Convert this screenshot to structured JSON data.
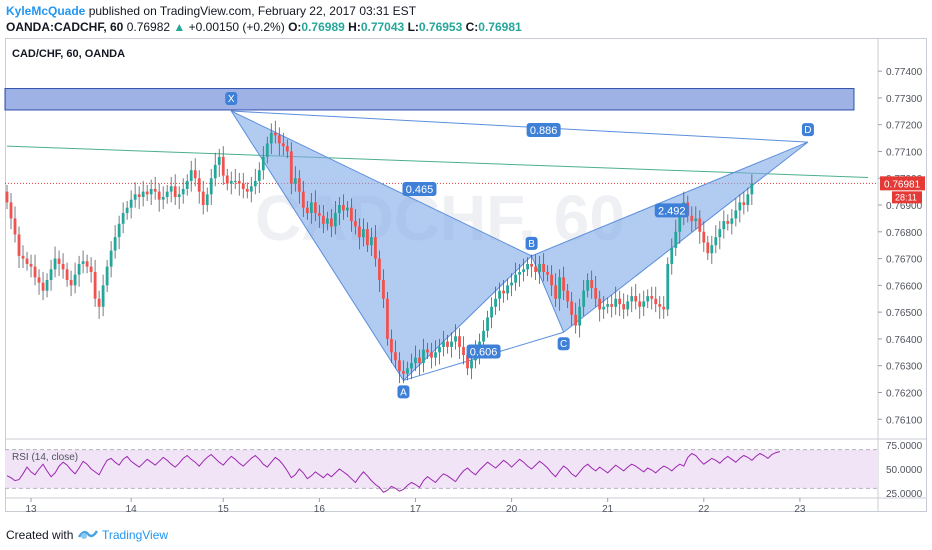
{
  "header": {
    "author": "KyleMcQuade",
    "published_text": "published on TradingView.com, February 22, 2017 03:31 EST",
    "symbol": "OANDA:CADCHF, 60",
    "last": "0.76982",
    "change": "+0.00150 (+0.2%)",
    "o_label": "O:",
    "o_value": "0.76989",
    "h_label": "H:",
    "h_value": "0.77043",
    "l_label": "L:",
    "l_value": "0.76953",
    "c_label": "C:",
    "c_value": "0.76981"
  },
  "footer": {
    "created_with": "Created with",
    "brand": "TradingView"
  },
  "colors": {
    "up": "#26a69a",
    "down": "#ef5350",
    "pattern_fill": "#7ea8e8",
    "pattern_edge": "#5b8fdc",
    "zone": "#4f73d0",
    "trendline": "#4caf8c",
    "price_line": "#e53935",
    "rsi": "#9c27b0",
    "rsi_band": "#f1e4f7"
  },
  "chart_data": {
    "type": "candlestick",
    "title": "CAD/CHF, 60, OANDA",
    "ylim": [
      0.7603,
      0.7752
    ],
    "y_ticks": [
      "0.77400",
      "0.77300",
      "0.77200",
      "0.77100",
      "0.77000",
      "0.76900",
      "0.76800",
      "0.76700",
      "0.76600",
      "0.76500",
      "0.76400",
      "0.76300",
      "0.76200",
      "0.76100"
    ],
    "y_tick_values": [
      0.774,
      0.773,
      0.772,
      0.771,
      0.77,
      0.769,
      0.768,
      0.767,
      0.766,
      0.765,
      0.764,
      0.763,
      0.762,
      0.761
    ],
    "x_labels": [
      "13",
      "14",
      "15",
      "16",
      "17",
      "20",
      "21",
      "22",
      "23"
    ],
    "x_label_index": [
      6,
      31,
      54,
      78,
      102,
      126,
      150,
      174,
      198
    ],
    "x_count": 218,
    "last_price": {
      "value": 0.76981,
      "label": "0.76981",
      "countdown": "28:11"
    },
    "candles_close": [
      0.7691,
      0.7685,
      0.7679,
      0.7671,
      0.767,
      0.7668,
      0.7667,
      0.7663,
      0.7661,
      0.7658,
      0.7662,
      0.7666,
      0.767,
      0.7668,
      0.7666,
      0.7662,
      0.766,
      0.7664,
      0.7668,
      0.7669,
      0.7667,
      0.7665,
      0.7655,
      0.7652,
      0.766,
      0.7667,
      0.7673,
      0.7678,
      0.7683,
      0.7687,
      0.7689,
      0.7692,
      0.7694,
      0.7693,
      0.7695,
      0.7694,
      0.7696,
      0.7695,
      0.7692,
      0.7693,
      0.7695,
      0.7697,
      0.7693,
      0.7694,
      0.7696,
      0.7699,
      0.7703,
      0.77,
      0.7695,
      0.769,
      0.7694,
      0.77,
      0.7705,
      0.7708,
      0.7701,
      0.7698,
      0.7699,
      0.7699,
      0.7698,
      0.7696,
      0.7695,
      0.7697,
      0.7699,
      0.7703,
      0.7708,
      0.7713,
      0.7717,
      0.7716,
      0.7713,
      0.7712,
      0.771,
      0.7698,
      0.77,
      0.7695,
      0.7689,
      0.7687,
      0.7691,
      0.7687,
      0.7686,
      0.7683,
      0.7685,
      0.7682,
      0.7687,
      0.769,
      0.7688,
      0.7689,
      0.7684,
      0.7682,
      0.7678,
      0.7681,
      0.7675,
      0.7678,
      0.767,
      0.7662,
      0.7655,
      0.764,
      0.7635,
      0.7632,
      0.7628,
      0.7627,
      0.7629,
      0.7631,
      0.7633,
      0.7631,
      0.7636,
      0.7635,
      0.7633,
      0.7635,
      0.7637,
      0.7639,
      0.7637,
      0.7639,
      0.7641,
      0.7637,
      0.7634,
      0.7629,
      0.7632,
      0.7635,
      0.7639,
      0.7643,
      0.7648,
      0.7652,
      0.7655,
      0.7658,
      0.7657,
      0.766,
      0.7661,
      0.7664,
      0.7665,
      0.7666,
      0.7668,
      0.7667,
      0.7665,
      0.7668,
      0.7665,
      0.7664,
      0.766,
      0.7655,
      0.7663,
      0.7658,
      0.7654,
      0.7649,
      0.7645,
      0.7652,
      0.7658,
      0.7662,
      0.7659,
      0.7655,
      0.7651,
      0.7652,
      0.7653,
      0.7652,
      0.7655,
      0.7653,
      0.7651,
      0.7654,
      0.7656,
      0.7654,
      0.7652,
      0.7654,
      0.7656,
      0.7655,
      0.7653,
      0.7652,
      0.7651,
      0.7668,
      0.7674,
      0.768,
      0.7686,
      0.7691,
      0.7686,
      0.7684,
      0.7685,
      0.768,
      0.7676,
      0.7672,
      0.7675,
      0.7678,
      0.7681,
      0.7684,
      0.7683,
      0.7685,
      0.7688,
      0.7691,
      0.769,
      0.7694,
      0.7698
    ],
    "rsi": {
      "label": "RSI (14, close)",
      "ylim": [
        20,
        80
      ],
      "y_ticks": [
        "75.0000",
        "50.0000",
        "25.0000"
      ],
      "y_tick_values": [
        75,
        50,
        25
      ],
      "band": [
        30,
        70
      ],
      "values": [
        43,
        41,
        38,
        39,
        45,
        52,
        47,
        44,
        50,
        55,
        48,
        42,
        46,
        53,
        57,
        54,
        49,
        45,
        51,
        58,
        55,
        50,
        47,
        44,
        52,
        59,
        61,
        57,
        54,
        60,
        63,
        58,
        55,
        52,
        56,
        60,
        57,
        54,
        58,
        62,
        59,
        55,
        52,
        56,
        61,
        64,
        60,
        57,
        53,
        58,
        62,
        65,
        61,
        57,
        54,
        59,
        63,
        60,
        56,
        53,
        57,
        61,
        64,
        60,
        55,
        52,
        57,
        62,
        59,
        54,
        48,
        41,
        44,
        50,
        46,
        40,
        43,
        47,
        44,
        41,
        45,
        42,
        46,
        50,
        47,
        44,
        40,
        36,
        42,
        47,
        43,
        38,
        34,
        31,
        26,
        28,
        32,
        30,
        27,
        29,
        33,
        36,
        34,
        31,
        38,
        42,
        39,
        36,
        41,
        45,
        43,
        40,
        37,
        43,
        48,
        51,
        47,
        44,
        49,
        53,
        57,
        54,
        51,
        55,
        59,
        56,
        52,
        56,
        60,
        57,
        53,
        50,
        54,
        58,
        55,
        51,
        46,
        42,
        48,
        53,
        50,
        45,
        42,
        47,
        52,
        55,
        51,
        48,
        52,
        49,
        46,
        50,
        54,
        51,
        48,
        52,
        55,
        53,
        50,
        47,
        51,
        49,
        46,
        50,
        53,
        51,
        48,
        52,
        55,
        53,
        62,
        66,
        64,
        59,
        55,
        58,
        61,
        59,
        56,
        60,
        63,
        60,
        57,
        61,
        64,
        62,
        59,
        63,
        66,
        64,
        61,
        65,
        67,
        68
      ]
    },
    "pattern": {
      "points": [
        {
          "label": "X",
          "index": 56,
          "price": 0.77251
        },
        {
          "label": "A",
          "index": 99,
          "price": 0.76245
        },
        {
          "label": "B",
          "index": 131,
          "price": 0.7671
        },
        {
          "label": "C",
          "index": 139,
          "price": 0.76425
        },
        {
          "label": "D",
          "index": 200,
          "price": 0.77135
        }
      ],
      "ratios": [
        {
          "label": "0.465",
          "index": 103,
          "price": 0.7696
        },
        {
          "label": "0.606",
          "index": 119,
          "price": 0.76353
        },
        {
          "label": "2.492",
          "index": 166,
          "price": 0.7688
        },
        {
          "label": "0.886",
          "index": 134,
          "price": 0.7718
        }
      ]
    },
    "zone": {
      "from_index": 0,
      "to_index": 212,
      "low": 0.77255,
      "high": 0.77335
    },
    "trendline": {
      "from_index": 0,
      "from_price": 0.7712,
      "to_index": 215,
      "to_price": 0.77003
    }
  }
}
